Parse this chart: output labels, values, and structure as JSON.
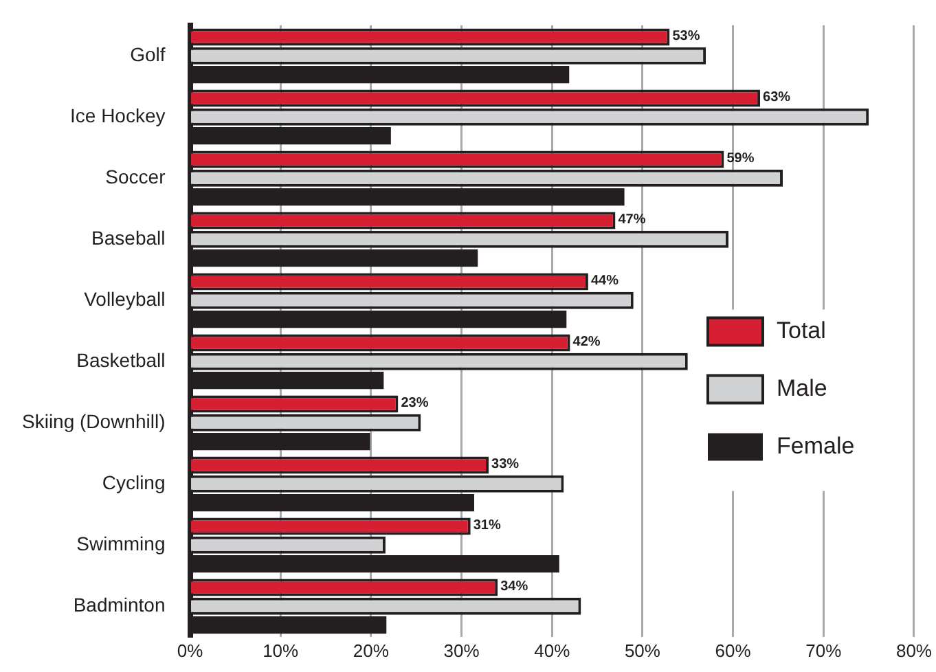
{
  "chart_data": {
    "type": "bar",
    "orientation": "horizontal",
    "categories": [
      "Golf",
      "Ice Hockey",
      "Soccer",
      "Baseball",
      "Volleyball",
      "Basketball",
      "Skiing (Downhill)",
      "Cycling",
      "Swimming",
      "Badminton"
    ],
    "series": [
      {
        "name": "Total",
        "color": "#d71f33",
        "values": [
          53,
          63,
          59,
          47,
          44,
          42,
          23,
          33,
          31,
          34
        ],
        "value_labels": [
          "53%",
          "63%",
          "59%",
          "47%",
          "44%",
          "42%",
          "23%",
          "33%",
          "31%",
          "34%"
        ]
      },
      {
        "name": "Male",
        "color": "#d1d2d4",
        "values": [
          57,
          75,
          65.5,
          59.5,
          49,
          55,
          25.5,
          41.3,
          21.6,
          43.2
        ]
      },
      {
        "name": "Female",
        "color": "#231f20",
        "values": [
          41.9,
          22.2,
          48,
          31.8,
          41.6,
          21.4,
          19.9,
          31.4,
          40.8,
          21.7
        ]
      }
    ],
    "xlim": [
      0,
      80
    ],
    "xticks": [
      {
        "value": 0,
        "label": "0%"
      },
      {
        "value": 10,
        "label": "10%"
      },
      {
        "value": 20,
        "label": "20%"
      },
      {
        "value": 30,
        "label": "30%"
      },
      {
        "value": 40,
        "label": "40%"
      },
      {
        "value": 50,
        "label": "50%"
      },
      {
        "value": 60,
        "label": "60%"
      },
      {
        "value": 70,
        "label": "70%"
      },
      {
        "value": 80,
        "label": "80%"
      }
    ],
    "grid": "x",
    "legend": "right"
  }
}
